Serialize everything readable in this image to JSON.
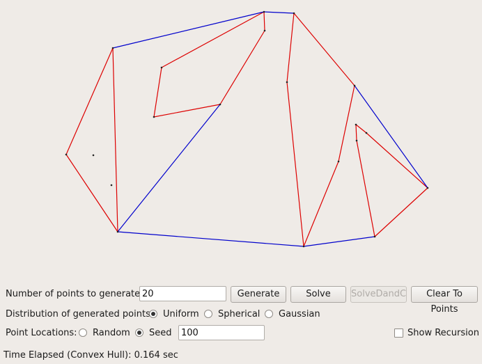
{
  "controls": {
    "num_points_label": "Number of points to generate:",
    "num_points_value": "20",
    "generate_label": "Generate",
    "solve_label": "Solve",
    "solve_dandc_label": "SolveDandC",
    "clear_label": "Clear To Points",
    "distribution_label": "Distribution of generated points:",
    "distribution_options": [
      "Uniform",
      "Spherical",
      "Gaussian"
    ],
    "distribution_selected": "Uniform",
    "locations_label": "Point Locations:",
    "locations_options": [
      "Random",
      "Seed"
    ],
    "locations_selected": "Seed",
    "seed_value": "100",
    "show_recursion_label": "Show Recursion",
    "show_recursion_checked": false
  },
  "status": {
    "time_elapsed": "Time Elapsed (Convex Hull): 0.164 sec"
  },
  "colors": {
    "background": "#efebe7",
    "hull_edge": "#0000cc",
    "recursion_edge": "#dd0000",
    "point": "#222222"
  }
}
